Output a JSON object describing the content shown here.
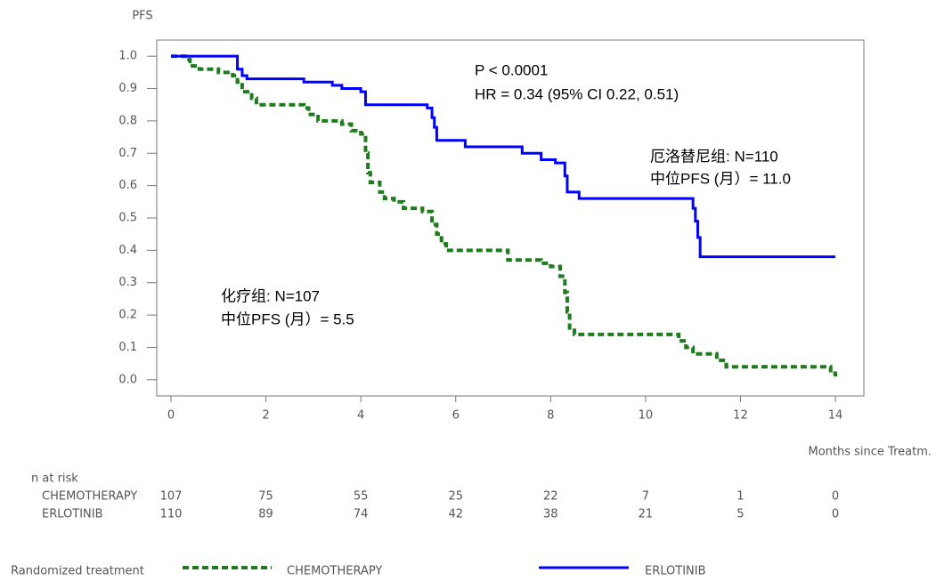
{
  "chart_data": {
    "type": "line",
    "step": "post",
    "y_label": "PFS",
    "x_label": "Months since Treatm.",
    "xlim": [
      -0.3,
      14.6
    ],
    "ylim": [
      -0.05,
      1.05
    ],
    "xticks": [
      0,
      2,
      4,
      6,
      8,
      10,
      12,
      14
    ],
    "yticks": [
      {
        "value": 1,
        "label": "1.0"
      },
      0.9,
      0.8,
      0.7,
      0.6,
      0.5,
      0.4,
      0.3,
      0.2,
      0.1,
      {
        "value": 0,
        "label": "0.0"
      }
    ],
    "annotations": [
      "P < 0.0001",
      "HR = 0.34 (95% CI 0.22, 0.51)",
      "厄洛替尼组: N=110",
      "中位PFS (月）= 11.0",
      "化疗组: N=107",
      "中位PFS (月）= 5.5"
    ],
    "series": [
      {
        "name": "CHEMOTHERAPY",
        "color": "#1e7b1e",
        "dashed": true,
        "x": [
          0,
          0.3,
          0.4,
          0.6,
          1.0,
          1.3,
          1.4,
          1.5,
          1.7,
          1.8,
          2.8,
          2.9,
          3.1,
          3.6,
          3.8,
          4.0,
          4.1,
          4.15,
          4.2,
          4.4,
          4.5,
          4.7,
          4.9,
          5.3,
          5.5,
          5.6,
          5.7,
          5.8,
          7.1,
          7.8,
          8.0,
          8.2,
          8.3,
          8.35,
          8.4,
          8.5,
          10.7,
          10.85,
          11.0,
          11.5,
          11.7,
          13.9,
          14.0
        ],
        "values": [
          1.0,
          0.99,
          0.97,
          0.96,
          0.95,
          0.94,
          0.92,
          0.89,
          0.87,
          0.85,
          0.84,
          0.82,
          0.8,
          0.79,
          0.77,
          0.76,
          0.7,
          0.64,
          0.61,
          0.58,
          0.56,
          0.55,
          0.53,
          0.52,
          0.48,
          0.45,
          0.42,
          0.4,
          0.37,
          0.36,
          0.35,
          0.32,
          0.27,
          0.21,
          0.16,
          0.14,
          0.12,
          0.1,
          0.08,
          0.06,
          0.04,
          0.02,
          0.01
        ]
      },
      {
        "name": "ERLOTINIB",
        "color": "#0000ff",
        "dashed": false,
        "x": [
          0,
          1.4,
          1.5,
          1.6,
          2.8,
          3.4,
          3.6,
          4.0,
          4.1,
          5.4,
          5.5,
          5.55,
          5.6,
          6.2,
          7.4,
          7.8,
          8.1,
          8.3,
          8.35,
          8.6,
          11.0,
          11.05,
          11.1,
          11.15,
          14.0
        ],
        "values": [
          1.0,
          0.96,
          0.94,
          0.93,
          0.92,
          0.91,
          0.9,
          0.89,
          0.85,
          0.84,
          0.81,
          0.78,
          0.74,
          0.72,
          0.7,
          0.68,
          0.67,
          0.63,
          0.58,
          0.56,
          0.53,
          0.49,
          0.44,
          0.38,
          0.38
        ]
      }
    ],
    "risk_table": {
      "title": "n at risk",
      "rows": [
        {
          "name": "CHEMOTHERAPY",
          "values": [
            107,
            75,
            55,
            25,
            22,
            7,
            1,
            0
          ]
        },
        {
          "name": "ERLOTINIB",
          "values": [
            110,
            89,
            74,
            42,
            38,
            21,
            5,
            0
          ]
        }
      ]
    },
    "legend_title": "Randomized treatment"
  }
}
